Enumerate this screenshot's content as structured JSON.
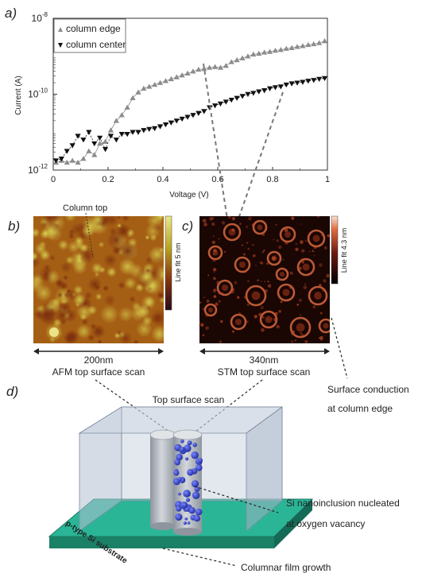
{
  "panel_labels": {
    "a": "a)",
    "b": "b)",
    "c": "c)",
    "d": "d)"
  },
  "chart_data": {
    "type": "scatter",
    "xlabel": "Voltage (V)",
    "ylabel": "Current (A)",
    "xlim": [
      0,
      1
    ],
    "ylim_log10": [
      -12,
      -8
    ],
    "y_scale": "log",
    "x_ticks": [
      0,
      0.2,
      0.4,
      0.6,
      0.8,
      1
    ],
    "x_tick_labels": [
      "0",
      "0.2",
      "0.4",
      "0.6",
      "0.8",
      "1"
    ],
    "y_ticks_log10": [
      -12,
      -10,
      -8
    ],
    "y_tick_labels": [
      {
        "base": "10",
        "exp": "-12"
      },
      {
        "base": "10",
        "exp": "-10"
      },
      {
        "base": "10",
        "exp": "-8"
      }
    ],
    "grid": false,
    "legend_position": "top-left",
    "series": [
      {
        "name": "column edge",
        "marker": "triangle-up",
        "color": "#8c8c8c",
        "x": [
          0.01,
          0.03,
          0.05,
          0.07,
          0.09,
          0.11,
          0.13,
          0.15,
          0.17,
          0.19,
          0.21,
          0.23,
          0.25,
          0.27,
          0.29,
          0.31,
          0.33,
          0.35,
          0.37,
          0.39,
          0.41,
          0.43,
          0.45,
          0.47,
          0.49,
          0.51,
          0.53,
          0.55,
          0.57,
          0.59,
          0.61,
          0.63,
          0.65,
          0.67,
          0.69,
          0.71,
          0.73,
          0.75,
          0.77,
          0.79,
          0.81,
          0.83,
          0.85,
          0.87,
          0.89,
          0.91,
          0.93,
          0.95,
          0.97,
          0.99
        ],
        "log10_y": [
          -11.8,
          -11.75,
          -11.8,
          -11.75,
          -11.8,
          -11.7,
          -11.5,
          -11.6,
          -11.3,
          -11.25,
          -10.95,
          -10.7,
          -10.55,
          -10.35,
          -10.1,
          -9.95,
          -9.85,
          -9.8,
          -9.75,
          -9.7,
          -9.65,
          -9.6,
          -9.55,
          -9.5,
          -9.45,
          -9.4,
          -9.35,
          -9.33,
          -9.3,
          -9.28,
          -9.3,
          -9.25,
          -9.15,
          -9.1,
          -9.05,
          -9.0,
          -8.95,
          -8.93,
          -8.9,
          -8.88,
          -8.85,
          -8.83,
          -8.8,
          -8.78,
          -8.75,
          -8.73,
          -8.7,
          -8.68,
          -8.65,
          -8.6
        ]
      },
      {
        "name": "column center",
        "marker": "triangle-down",
        "color": "#111111",
        "x": [
          0.01,
          0.03,
          0.05,
          0.07,
          0.09,
          0.11,
          0.13,
          0.15,
          0.17,
          0.19,
          0.21,
          0.23,
          0.25,
          0.27,
          0.29,
          0.31,
          0.33,
          0.35,
          0.37,
          0.39,
          0.41,
          0.43,
          0.45,
          0.47,
          0.49,
          0.51,
          0.53,
          0.55,
          0.57,
          0.59,
          0.61,
          0.63,
          0.65,
          0.67,
          0.69,
          0.71,
          0.73,
          0.75,
          0.77,
          0.79,
          0.81,
          0.83,
          0.85,
          0.87,
          0.89,
          0.91,
          0.93,
          0.95,
          0.97,
          0.99
        ],
        "log10_y": [
          -11.75,
          -11.7,
          -11.5,
          -11.35,
          -11.1,
          -11.2,
          -11.0,
          -11.3,
          -11.15,
          -11.45,
          -11.1,
          -11.2,
          -11.05,
          -11.05,
          -11.0,
          -11.0,
          -10.95,
          -10.92,
          -10.9,
          -10.85,
          -10.8,
          -10.75,
          -10.7,
          -10.65,
          -10.6,
          -10.55,
          -10.5,
          -10.45,
          -10.35,
          -10.3,
          -10.25,
          -10.2,
          -10.15,
          -10.1,
          -10.05,
          -10.0,
          -9.97,
          -9.93,
          -9.9,
          -9.85,
          -9.82,
          -9.8,
          -9.75,
          -9.72,
          -9.7,
          -9.68,
          -9.65,
          -9.63,
          -9.6,
          -9.58
        ]
      }
    ]
  },
  "images": {
    "afm": {
      "label_top": "Column top",
      "scale_text": "200nm",
      "caption": "AFM top surface scan",
      "colorbar_label": "Line fit 5 nm"
    },
    "stm": {
      "scale_text": "340nm",
      "caption": "STM top surface scan",
      "colorbar_label": "Line fit 4.3 nm"
    }
  },
  "schematic": {
    "top_scan_label": "Top surface scan",
    "surface_conduction_line1": "Surface conduction",
    "surface_conduction_line2": "at column edge",
    "nanoinclusion_line1": "Si nanoinclusion nucleated",
    "nanoinclusion_line2": "at oxygen vacancy",
    "substrate_label": "p-type Si substrate",
    "growth_label": "Columnar film growth"
  },
  "colors": {
    "substrate_top": "#2bb597",
    "substrate_side": "#1a8066",
    "box": "#aab6c9",
    "pillar": "#b9bec4",
    "nanoinclusion": "#3a47c4"
  }
}
